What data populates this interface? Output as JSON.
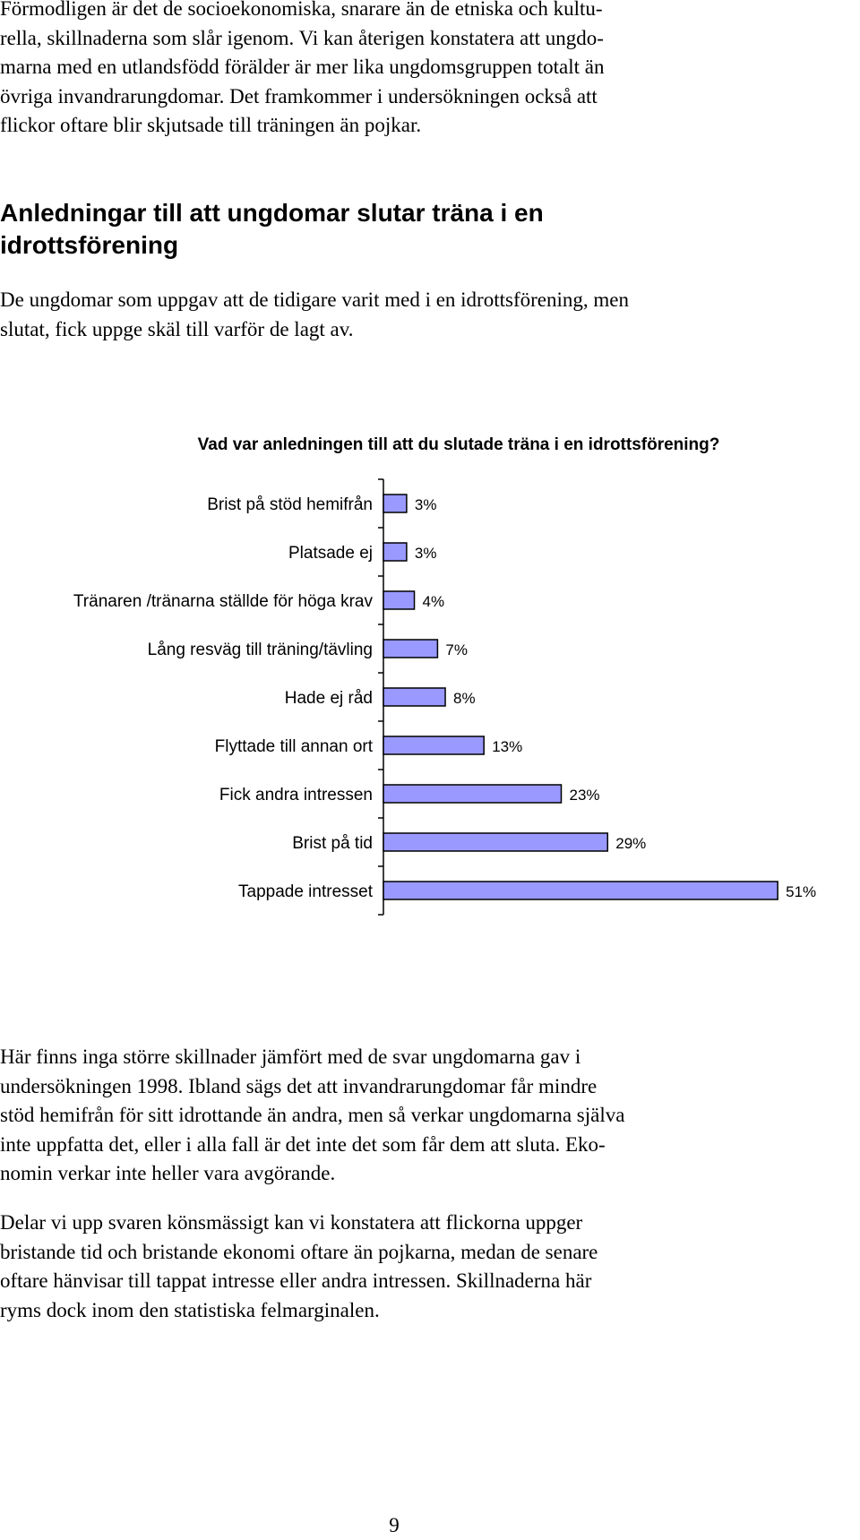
{
  "paragraphs": {
    "intro": "Förmodligen är det de socioekonomiska, snarare än de etniska och kultu-\nrella, skillnaderna som slår igenom. Vi kan återigen konstatera att ungdo-\nmarna med en utlandsfödd förälder är mer lika ungdomsgruppen totalt än\növriga invandrarungdomar. Det framkommer i undersökningen också att\nflickor oftare blir skjutsade till träningen än pojkar.",
    "section_intro": "De ungdomar som uppgav att de tidigare varit med i en idrottsförening, men\nslutat, fick uppge skäl till varför de lagt av.",
    "after_chart_1": "Här finns inga större skillnader jämfört med de svar ungdomarna gav i\nundersökningen 1998. Ibland sägs det att invandrarungdomar får mindre\nstöd hemifrån för sitt idrottande än andra, men så verkar ungdomarna själva\ninte uppfatta det, eller i alla fall är det inte det som får dem att sluta. Eko-\nnomin verkar inte heller vara avgörande.",
    "after_chart_2": "Delar vi upp svaren könsmässigt kan vi konstatera att flickorna uppger\nbristande tid och bristande ekonomi oftare än pojkarna, medan de senare\noftare hänvisar till tappat intresse eller andra intressen. Skillnaderna här\nryms dock inom den statistiska felmarginalen."
  },
  "section_heading": "Anledningar till att ungdomar slutar träna i en\nidrottsförening",
  "page_number": "9",
  "colors": {
    "bar_fill": "#9999ff",
    "bar_stroke": "#000000"
  },
  "chart_data": {
    "type": "bar",
    "orientation": "horizontal",
    "title": "Vad var anledningen till att du slutade träna i en idrottsförening?",
    "categories": [
      "Brist på stöd hemifrån",
      "Platsade ej",
      "Tränaren /tränarna ställde för höga krav",
      "Lång resväg till träning/tävling",
      "Hade ej råd",
      "Flyttade till annan ort",
      "Fick andra intressen",
      "Brist på tid",
      "Tappade intresset"
    ],
    "values": [
      3,
      3,
      4,
      7,
      8,
      13,
      23,
      29,
      51
    ],
    "value_labels": [
      "3%",
      "3%",
      "4%",
      "7%",
      "8%",
      "13%",
      "23%",
      "29%",
      "51%"
    ],
    "unit": "%",
    "xlim": [
      0,
      51
    ],
    "grid": false,
    "legend": "none"
  }
}
